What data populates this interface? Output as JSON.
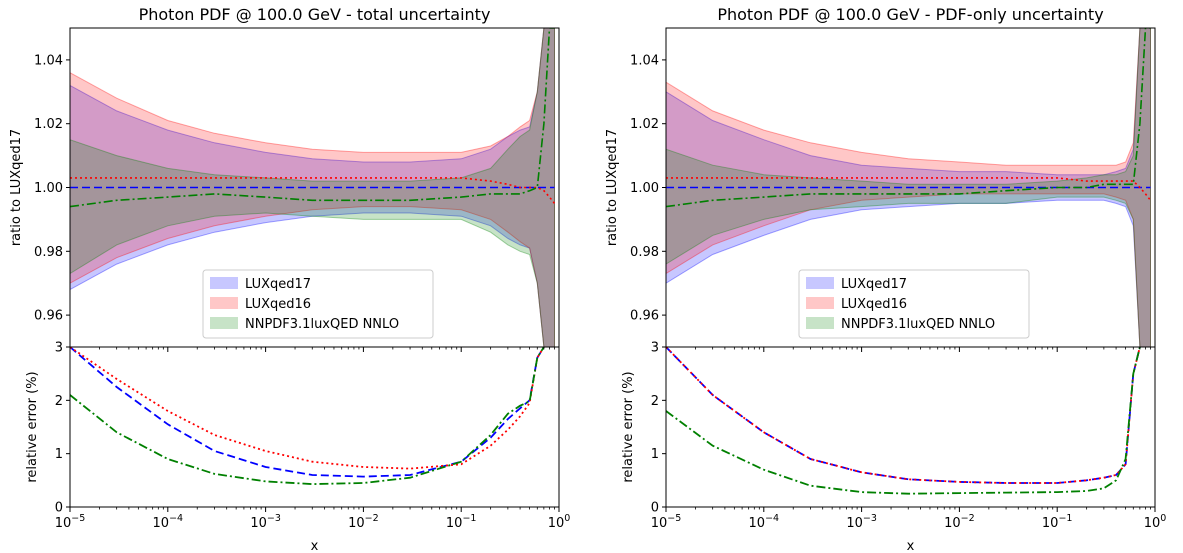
{
  "chart_data": [
    {
      "type": "area",
      "title": "Photon PDF @ 100.0 GeV - total uncertainty",
      "ylabel": "ratio to LUXqed17",
      "x_scale": "log",
      "xlim": [
        1e-05,
        1.0
      ],
      "ylim": [
        0.95,
        1.05
      ],
      "yticks": [
        "0.96",
        "0.98",
        "1.00",
        "1.02",
        "1.04"
      ],
      "legend_location": "lower-center",
      "series": [
        {
          "name": "LUXqed17",
          "color": "#0000ff",
          "x": [
            1e-05,
            3e-05,
            0.0001,
            0.0003,
            0.001,
            0.003,
            0.01,
            0.03,
            0.1,
            0.2,
            0.3,
            0.4,
            0.5,
            0.6,
            0.7,
            0.8,
            0.9
          ],
          "upper": [
            1.032,
            1.024,
            1.018,
            1.014,
            1.011,
            1.009,
            1.008,
            1.008,
            1.009,
            1.012,
            1.016,
            1.018,
            1.019,
            1.03,
            1.05,
            1.05,
            1.05
          ],
          "lower": [
            0.968,
            0.976,
            0.982,
            0.986,
            0.989,
            0.991,
            0.992,
            0.992,
            0.991,
            0.988,
            0.984,
            0.982,
            0.981,
            0.97,
            0.95,
            0.95,
            0.95
          ],
          "central": [
            1.0,
            1.0,
            1.0,
            1.0,
            1.0,
            1.0,
            1.0,
            1.0,
            1.0,
            1.0,
            1.0,
            1.0,
            1.0,
            1.0,
            1.0,
            1.0,
            1.0
          ]
        },
        {
          "name": "LUXqed16",
          "color": "#ff0000",
          "x": [
            1e-05,
            3e-05,
            0.0001,
            0.0003,
            0.001,
            0.003,
            0.01,
            0.03,
            0.1,
            0.2,
            0.3,
            0.4,
            0.5,
            0.6,
            0.7,
            0.8,
            0.9
          ],
          "upper": [
            1.036,
            1.028,
            1.021,
            1.017,
            1.014,
            1.012,
            1.011,
            1.011,
            1.011,
            1.013,
            1.016,
            1.019,
            1.021,
            1.03,
            1.05,
            1.05,
            1.05
          ],
          "lower": [
            0.97,
            0.978,
            0.984,
            0.988,
            0.991,
            0.993,
            0.994,
            0.994,
            0.993,
            0.99,
            0.986,
            0.983,
            0.981,
            0.97,
            0.95,
            0.95,
            0.95
          ],
          "central": [
            1.003,
            1.003,
            1.003,
            1.003,
            1.003,
            1.003,
            1.003,
            1.003,
            1.003,
            1.002,
            1.001,
            1.0,
            1.0,
            1.0,
            0.999,
            0.997,
            0.995
          ]
        },
        {
          "name": "NNPDF3.1luxQED NNLO",
          "color": "#008000",
          "x": [
            1e-05,
            3e-05,
            0.0001,
            0.0003,
            0.001,
            0.003,
            0.01,
            0.03,
            0.1,
            0.2,
            0.3,
            0.4,
            0.5,
            0.6,
            0.7,
            0.8,
            0.9
          ],
          "upper": [
            1.015,
            1.01,
            1.006,
            1.004,
            1.003,
            1.002,
            1.002,
            1.002,
            1.003,
            1.006,
            1.012,
            1.016,
            1.018,
            1.03,
            1.05,
            1.05,
            1.05
          ],
          "lower": [
            0.973,
            0.982,
            0.988,
            0.991,
            0.992,
            0.991,
            0.99,
            0.99,
            0.99,
            0.986,
            0.982,
            0.98,
            0.979,
            0.97,
            0.95,
            0.95,
            0.95
          ],
          "central": [
            0.994,
            0.996,
            0.997,
            0.998,
            0.997,
            0.996,
            0.996,
            0.996,
            0.997,
            0.998,
            0.998,
            0.998,
            0.999,
            1.0,
            1.02,
            1.05,
            1.05
          ]
        }
      ]
    },
    {
      "type": "line",
      "ylabel": "relative error (%)",
      "xlabel": "x",
      "x_scale": "log",
      "xlim": [
        1e-05,
        1.0
      ],
      "ylim": [
        0,
        3
      ],
      "yticks": [
        "0",
        "1",
        "2",
        "3"
      ],
      "series": [
        {
          "name": "LUXqed17",
          "color": "#0000ff",
          "style": "dashed",
          "x": [
            1e-05,
            3e-05,
            0.0001,
            0.0003,
            0.001,
            0.003,
            0.01,
            0.03,
            0.1,
            0.2,
            0.3,
            0.4,
            0.5,
            0.6,
            0.7
          ],
          "y": [
            3.0,
            2.25,
            1.55,
            1.05,
            0.75,
            0.6,
            0.57,
            0.6,
            0.85,
            1.3,
            1.65,
            1.85,
            2.0,
            2.8,
            3.0
          ]
        },
        {
          "name": "LUXqed16",
          "color": "#ff0000",
          "style": "dotted",
          "x": [
            1e-05,
            3e-05,
            0.0001,
            0.0003,
            0.001,
            0.003,
            0.01,
            0.03,
            0.1,
            0.2,
            0.3,
            0.4,
            0.5,
            0.6,
            0.7
          ],
          "y": [
            3.0,
            2.4,
            1.8,
            1.35,
            1.05,
            0.85,
            0.75,
            0.72,
            0.8,
            1.15,
            1.45,
            1.7,
            1.95,
            2.8,
            3.0
          ]
        },
        {
          "name": "NNPDF3.1luxQED NNLO",
          "color": "#008000",
          "style": "dashdot",
          "x": [
            1e-05,
            3e-05,
            0.0001,
            0.0003,
            0.001,
            0.003,
            0.01,
            0.03,
            0.1,
            0.2,
            0.3,
            0.4,
            0.5,
            0.6,
            0.7
          ],
          "y": [
            2.1,
            1.4,
            0.9,
            0.62,
            0.48,
            0.43,
            0.45,
            0.55,
            0.85,
            1.35,
            1.75,
            1.9,
            1.98,
            2.8,
            3.0
          ]
        }
      ]
    },
    {
      "type": "area",
      "title": "Photon PDF @ 100.0 GeV - PDF-only uncertainty",
      "ylabel": "ratio to LUXqed17",
      "x_scale": "log",
      "xlim": [
        1e-05,
        1.0
      ],
      "ylim": [
        0.95,
        1.05
      ],
      "yticks": [
        "0.96",
        "0.98",
        "1.00",
        "1.02",
        "1.04"
      ],
      "legend_location": "lower-center",
      "series": [
        {
          "name": "LUXqed17",
          "color": "#0000ff",
          "x": [
            1e-05,
            3e-05,
            0.0001,
            0.0003,
            0.001,
            0.003,
            0.01,
            0.03,
            0.1,
            0.2,
            0.3,
            0.4,
            0.5,
            0.6,
            0.7,
            0.8,
            0.9
          ],
          "upper": [
            1.03,
            1.021,
            1.015,
            1.01,
            1.007,
            1.006,
            1.005,
            1.005,
            1.004,
            1.004,
            1.004,
            1.005,
            1.006,
            1.012,
            1.05,
            1.05,
            1.05
          ],
          "lower": [
            0.97,
            0.979,
            0.985,
            0.99,
            0.993,
            0.994,
            0.995,
            0.995,
            0.996,
            0.996,
            0.996,
            0.995,
            0.994,
            0.988,
            0.95,
            0.95,
            0.95
          ],
          "central": [
            1.0,
            1.0,
            1.0,
            1.0,
            1.0,
            1.0,
            1.0,
            1.0,
            1.0,
            1.0,
            1.0,
            1.0,
            1.0,
            1.0,
            1.0,
            1.0,
            1.0
          ]
        },
        {
          "name": "LUXqed16",
          "color": "#ff0000",
          "x": [
            1e-05,
            3e-05,
            0.0001,
            0.0003,
            0.001,
            0.003,
            0.01,
            0.03,
            0.1,
            0.2,
            0.3,
            0.4,
            0.5,
            0.6,
            0.7,
            0.8,
            0.9
          ],
          "upper": [
            1.033,
            1.024,
            1.018,
            1.014,
            1.011,
            1.009,
            1.008,
            1.007,
            1.007,
            1.007,
            1.007,
            1.007,
            1.008,
            1.014,
            1.05,
            1.05,
            1.05
          ],
          "lower": [
            0.973,
            0.982,
            0.988,
            0.993,
            0.996,
            0.997,
            0.998,
            0.998,
            0.998,
            0.998,
            0.998,
            0.997,
            0.996,
            0.99,
            0.95,
            0.95,
            0.95
          ],
          "central": [
            1.003,
            1.003,
            1.003,
            1.003,
            1.003,
            1.003,
            1.003,
            1.003,
            1.003,
            1.002,
            1.002,
            1.002,
            1.002,
            1.002,
            1.0,
            0.998,
            0.996
          ]
        },
        {
          "name": "NNPDF3.1luxQED NNLO",
          "color": "#008000",
          "x": [
            1e-05,
            3e-05,
            0.0001,
            0.0003,
            0.001,
            0.003,
            0.01,
            0.03,
            0.1,
            0.2,
            0.3,
            0.4,
            0.5,
            0.6,
            0.7,
            0.8,
            0.9
          ],
          "upper": [
            1.012,
            1.007,
            1.004,
            1.003,
            1.002,
            1.001,
            1.001,
            1.001,
            1.002,
            1.003,
            1.004,
            1.004,
            1.005,
            1.01,
            1.05,
            1.05,
            1.05
          ],
          "lower": [
            0.976,
            0.985,
            0.99,
            0.993,
            0.994,
            0.995,
            0.995,
            0.995,
            0.997,
            0.997,
            0.997,
            0.996,
            0.995,
            0.99,
            0.95,
            0.95,
            0.95
          ],
          "central": [
            0.994,
            0.996,
            0.997,
            0.998,
            0.998,
            0.998,
            0.998,
            0.999,
            1.0,
            1.0,
            1.001,
            1.001,
            1.001,
            1.001,
            1.02,
            1.05,
            1.05
          ]
        }
      ]
    },
    {
      "type": "line",
      "ylabel": "relative error (%)",
      "xlabel": "x",
      "x_scale": "log",
      "xlim": [
        1e-05,
        1.0
      ],
      "ylim": [
        0,
        3
      ],
      "yticks": [
        "0",
        "1",
        "2",
        "3"
      ],
      "series": [
        {
          "name": "LUXqed17",
          "color": "#0000ff",
          "style": "dashed",
          "x": [
            1e-05,
            3e-05,
            0.0001,
            0.0003,
            0.001,
            0.003,
            0.01,
            0.03,
            0.1,
            0.2,
            0.3,
            0.4,
            0.5,
            0.6,
            0.7
          ],
          "y": [
            3.0,
            2.1,
            1.4,
            0.9,
            0.65,
            0.52,
            0.47,
            0.45,
            0.45,
            0.5,
            0.55,
            0.6,
            0.8,
            2.5,
            3.0
          ]
        },
        {
          "name": "LUXqed16",
          "color": "#ff0000",
          "style": "dotted",
          "x": [
            1e-05,
            3e-05,
            0.0001,
            0.0003,
            0.001,
            0.003,
            0.01,
            0.03,
            0.1,
            0.2,
            0.3,
            0.4,
            0.5,
            0.6,
            0.7
          ],
          "y": [
            3.0,
            2.1,
            1.4,
            0.9,
            0.65,
            0.52,
            0.47,
            0.45,
            0.45,
            0.5,
            0.55,
            0.6,
            0.8,
            2.5,
            3.0
          ]
        },
        {
          "name": "NNPDF3.1luxQED NNLO",
          "color": "#008000",
          "style": "dashdot",
          "x": [
            1e-05,
            3e-05,
            0.0001,
            0.0003,
            0.001,
            0.003,
            0.01,
            0.03,
            0.1,
            0.2,
            0.3,
            0.4,
            0.5,
            0.6,
            0.7
          ],
          "y": [
            1.8,
            1.15,
            0.7,
            0.4,
            0.28,
            0.25,
            0.26,
            0.27,
            0.28,
            0.3,
            0.35,
            0.5,
            0.9,
            2.5,
            3.0
          ]
        }
      ]
    }
  ],
  "x_ticks": [
    {
      "base": "10",
      "exp": "−5"
    },
    {
      "base": "10",
      "exp": "−4"
    },
    {
      "base": "10",
      "exp": "−3"
    },
    {
      "base": "10",
      "exp": "−2"
    },
    {
      "base": "10",
      "exp": "−1"
    },
    {
      "base": "10",
      "exp": "0"
    }
  ]
}
